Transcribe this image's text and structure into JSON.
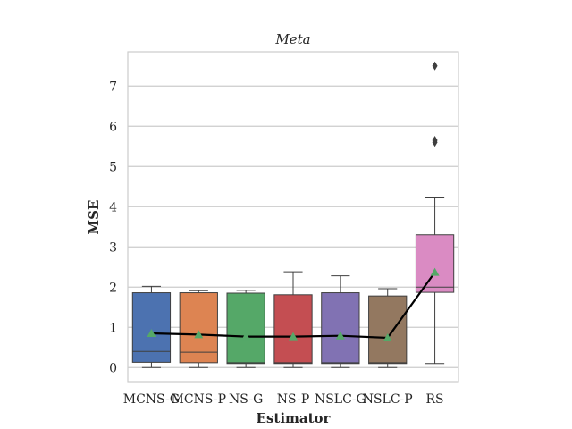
{
  "chart_data": {
    "type": "box",
    "title": "Meta",
    "xlabel": "Estimator",
    "ylabel": "MSE",
    "ylim": [
      -0.35,
      7.85
    ],
    "yticks": [
      0,
      1,
      2,
      3,
      4,
      5,
      6,
      7
    ],
    "grid": true,
    "categories": [
      "MCNS-G",
      "MCNS-P",
      "NS-G",
      "NS-P",
      "NSLC-G",
      "NSLC-P",
      "RS"
    ],
    "colors": [
      "#4c72b0",
      "#dd8452",
      "#55a868",
      "#c44e52",
      "#8172b3",
      "#937860",
      "#da8bc3"
    ],
    "boxes": [
      {
        "whislo": 0.0,
        "q1": 0.13,
        "med": 0.4,
        "q3": 1.86,
        "whishi": 2.02,
        "fliers": []
      },
      {
        "whislo": 0.0,
        "q1": 0.12,
        "med": 0.38,
        "q3": 1.86,
        "whishi": 1.91,
        "fliers": []
      },
      {
        "whislo": 0.0,
        "q1": 0.1,
        "med": 0.12,
        "q3": 1.85,
        "whishi": 1.92,
        "fliers": []
      },
      {
        "whislo": 0.0,
        "q1": 0.1,
        "med": 0.12,
        "q3": 1.81,
        "whishi": 2.38,
        "fliers": []
      },
      {
        "whislo": 0.0,
        "q1": 0.1,
        "med": 0.12,
        "q3": 1.86,
        "whishi": 2.28,
        "fliers": []
      },
      {
        "whislo": 0.0,
        "q1": 0.1,
        "med": 0.12,
        "q3": 1.78,
        "whishi": 1.96,
        "fliers": []
      },
      {
        "whislo": 0.1,
        "q1": 1.87,
        "med": 2.0,
        "q3": 3.3,
        "whishi": 4.24,
        "fliers": [
          5.6,
          5.65,
          7.5
        ]
      }
    ],
    "means": [
      0.85,
      0.82,
      0.77,
      0.77,
      0.79,
      0.74,
      2.37
    ],
    "mean_marker_color": "#55a868",
    "mean_line_color": "#000000"
  }
}
